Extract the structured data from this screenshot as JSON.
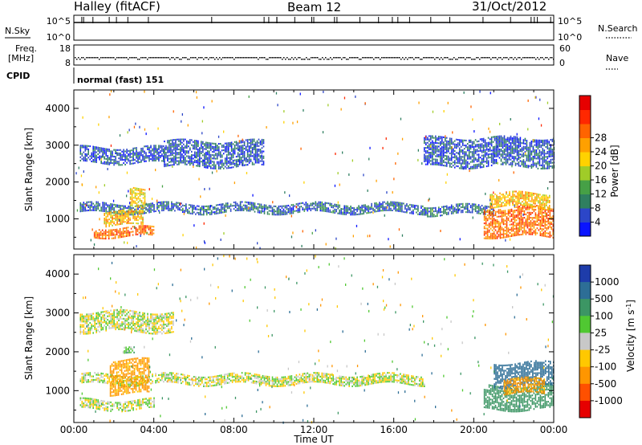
{
  "header": {
    "station": "Halley (fitACF)",
    "beam": "Beam 12",
    "date": "31/Oct/2012"
  },
  "top_panels": {
    "nsky_label": "N.Sky",
    "nsky_ticks": [
      "10^5",
      "10^0"
    ],
    "nsearch_label": "N.Search",
    "freq_label_1": "Freq.",
    "freq_label_2": "[MHz]",
    "freq_ticks": [
      "18",
      "8"
    ],
    "nave_label": "Nave",
    "nave_ticks": [
      "60",
      "0"
    ],
    "cpid_label": "CPID",
    "cpid_text": "normal (fast) 151"
  },
  "chart_data": [
    {
      "type": "heatmap",
      "panel": "power",
      "ylabel": "Slant Range [km]",
      "xlabel": "",
      "x_ticks": [
        "00:00",
        "04:00",
        "08:00",
        "12:00",
        "16:00",
        "20:00",
        "00:00"
      ],
      "x_range_hours": [
        0,
        24
      ],
      "y_ticks": [
        1000,
        2000,
        3000,
        4000
      ],
      "ylim": [
        180,
        4500
      ],
      "colorbar": {
        "label": "Power [dB]",
        "ticks": [
          4,
          8,
          12,
          16,
          20,
          24,
          28
        ],
        "colors": [
          "#0a14ff",
          "#2c46c8",
          "#2f7f60",
          "#46a046",
          "#a0cc28",
          "#ffd200",
          "#ffa000",
          "#ff6400",
          "#ff2800",
          "#e60000"
        ]
      },
      "regions": [
        {
          "t0": 0.3,
          "t1": 17.5,
          "r0": 1150,
          "r1": 1400,
          "value": 6
        },
        {
          "t0": 0.3,
          "t1": 4.5,
          "r0": 2500,
          "r1": 2950,
          "value": 5
        },
        {
          "t0": 1.0,
          "t1": 4.0,
          "r0": 500,
          "r1": 750,
          "value": 22
        },
        {
          "t0": 1.5,
          "t1": 3.5,
          "r0": 800,
          "r1": 1200,
          "value": 18
        },
        {
          "t0": 2.8,
          "t1": 3.6,
          "r0": 1300,
          "r1": 1800,
          "value": 16
        },
        {
          "t0": 4.5,
          "t1": 9.5,
          "r0": 2400,
          "r1": 3100,
          "value": 5
        },
        {
          "t0": 17.5,
          "t1": 21.0,
          "r0": 1100,
          "r1": 1350,
          "value": 6
        },
        {
          "t0": 20.5,
          "t1": 24.0,
          "r0": 500,
          "r1": 1300,
          "value": 22
        },
        {
          "t0": 20.8,
          "t1": 23.8,
          "r0": 1300,
          "r1": 1700,
          "value": 18
        },
        {
          "t0": 17.5,
          "t1": 24.0,
          "r0": 2400,
          "r1": 3200,
          "value": 5
        }
      ]
    },
    {
      "type": "heatmap",
      "panel": "velocity",
      "ylabel": "Slant Range [km]",
      "xlabel": "Time UT",
      "x_ticks": [
        "00:00",
        "04:00",
        "08:00",
        "12:00",
        "16:00",
        "20:00",
        "00:00"
      ],
      "x_range_hours": [
        0,
        24
      ],
      "y_ticks": [
        1000,
        2000,
        3000,
        4000
      ],
      "ylim": [
        180,
        4500
      ],
      "colorbar": {
        "label": "Velocity [m s",
        "label_sup": "-1",
        "label_end": "]",
        "ticks": [
          "1000",
          "500",
          "100",
          "25",
          "-25",
          "-100",
          "-500",
          "-1000"
        ],
        "colors": [
          "#1e3caa",
          "#2d6e96",
          "#3c9664",
          "#50c832",
          "#c8c8c8",
          "#ffc800",
          "#ff9600",
          "#ff5000",
          "#e60000"
        ]
      },
      "regions": [
        {
          "t0": 0.3,
          "t1": 17.5,
          "r0": 1150,
          "r1": 1400,
          "value": 0
        },
        {
          "t0": 0.3,
          "t1": 4.0,
          "r0": 500,
          "r1": 750,
          "value": 0
        },
        {
          "t0": 1.8,
          "t1": 3.8,
          "r0": 900,
          "r1": 1800,
          "value": -150
        },
        {
          "t0": 2.5,
          "t1": 3.0,
          "r0": 1900,
          "r1": 2050,
          "value": 100
        },
        {
          "t0": 0.3,
          "t1": 5.0,
          "r0": 2500,
          "r1": 3000,
          "value": 0
        },
        {
          "t0": 20.5,
          "t1": 24.0,
          "r0": 500,
          "r1": 1100,
          "value": 200
        },
        {
          "t0": 21.0,
          "t1": 24.0,
          "r0": 1100,
          "r1": 1700,
          "value": 600
        },
        {
          "t0": 21.5,
          "t1": 23.5,
          "r0": 900,
          "r1": 1300,
          "value": -150
        }
      ]
    }
  ]
}
